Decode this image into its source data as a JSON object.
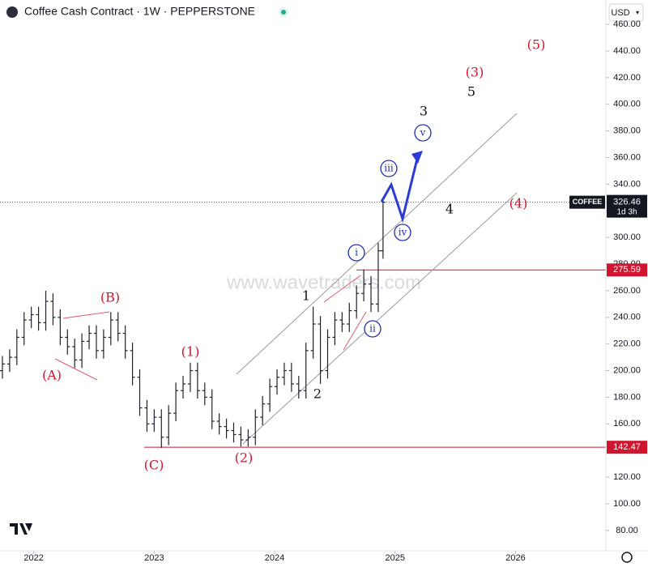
{
  "header": {
    "title": "Coffee Cash Contract · 1W · PEPPERSTONE",
    "currency": "USD",
    "watermark": "www.wavetraders.com"
  },
  "chart_data": {
    "type": "ohlc",
    "color": "#1e222d",
    "x": [
      2021.74,
      2021.8,
      2021.86,
      2021.92,
      2021.98,
      2022.04,
      2022.1,
      2022.16,
      2022.22,
      2022.28,
      2022.34,
      2022.4,
      2022.46,
      2022.52,
      2022.58,
      2022.64,
      2022.7,
      2022.76,
      2022.82,
      2022.88,
      2022.94,
      2023.0,
      2023.06,
      2023.12,
      2023.18,
      2023.24,
      2023.3,
      2023.36,
      2023.42,
      2023.48,
      2023.54,
      2023.6,
      2023.66,
      2023.72,
      2023.78,
      2023.84,
      2023.9,
      2023.96,
      2024.02,
      2024.08,
      2024.14,
      2024.2,
      2024.26,
      2024.32,
      2024.38,
      2024.44,
      2024.5,
      2024.56,
      2024.62,
      2024.68,
      2024.74,
      2024.8,
      2024.86,
      2024.9
    ],
    "open": [
      200,
      205,
      210,
      225,
      238,
      242,
      236,
      252,
      240,
      225,
      218,
      208,
      222,
      228,
      215,
      225,
      238,
      228,
      215,
      195,
      172,
      160,
      165,
      150,
      168,
      185,
      190,
      200,
      185,
      180,
      162,
      158,
      155,
      152,
      148,
      150,
      165,
      175,
      188,
      195,
      200,
      190,
      185,
      215,
      235,
      200,
      225,
      238,
      235,
      245,
      258,
      265,
      250,
      290
    ],
    "high": [
      211,
      216,
      231,
      244,
      248,
      248,
      260,
      258,
      246,
      231,
      224,
      228,
      234,
      234,
      231,
      244,
      244,
      234,
      221,
      201,
      178,
      171,
      171,
      174,
      191,
      196,
      206,
      206,
      191,
      186,
      168,
      164,
      161,
      158,
      156,
      171,
      181,
      194,
      201,
      206,
      206,
      196,
      221,
      248,
      241,
      231,
      244,
      244,
      251,
      264,
      276,
      271,
      296,
      330
    ],
    "low": [
      194,
      199,
      204,
      219,
      232,
      230,
      230,
      234,
      219,
      212,
      202,
      202,
      216,
      209,
      209,
      219,
      222,
      209,
      189,
      166,
      154,
      154,
      142,
      144,
      162,
      179,
      184,
      179,
      174,
      156,
      152,
      149,
      146,
      143,
      143,
      144,
      159,
      169,
      182,
      189,
      184,
      179,
      179,
      209,
      190,
      194,
      219,
      229,
      229,
      239,
      252,
      244,
      244,
      284
    ],
    "close": [
      205,
      210,
      225,
      238,
      242,
      236,
      252,
      240,
      225,
      218,
      208,
      222,
      228,
      215,
      225,
      238,
      228,
      215,
      195,
      172,
      160,
      165,
      150,
      168,
      185,
      190,
      200,
      185,
      180,
      162,
      158,
      155,
      152,
      148,
      150,
      165,
      175,
      188,
      195,
      200,
      190,
      185,
      215,
      235,
      200,
      225,
      238,
      235,
      245,
      258,
      265,
      250,
      290,
      326.46
    ],
    "xlim": [
      2021.72,
      2026.75
    ],
    "xticks": [
      2022,
      2023,
      2024,
      2025,
      2026
    ],
    "ylim": [
      64.7,
      478.3
    ],
    "yticks": [
      {
        "value": 80,
        "label": "80.00"
      },
      {
        "value": 100,
        "label": "100.00"
      },
      {
        "value": 120,
        "label": "120.00"
      },
      {
        "value": 140,
        "label": "140.00"
      },
      {
        "value": 160,
        "label": "160.00"
      },
      {
        "value": 180,
        "label": "180.00"
      },
      {
        "value": 200,
        "label": "200.00"
      },
      {
        "value": 220,
        "label": "220.00"
      },
      {
        "value": 240,
        "label": "240.00"
      },
      {
        "value": 260,
        "label": "260.00"
      },
      {
        "value": 280,
        "label": "280.00"
      },
      {
        "value": 300,
        "label": "300.00"
      },
      {
        "value": 320,
        "label": "320.00"
      },
      {
        "value": 340,
        "label": "340.00"
      },
      {
        "value": 360,
        "label": "360.00"
      },
      {
        "value": 380,
        "label": "380.00"
      },
      {
        "value": 400,
        "label": "400.00"
      },
      {
        "value": 420,
        "label": "420.00"
      },
      {
        "value": 440,
        "label": "440.00"
      },
      {
        "value": 460,
        "label": "460.00"
      }
    ],
    "hlines": [
      275.59,
      142.47
    ],
    "last_price": {
      "symbol": "COFFEE",
      "value": 326.46,
      "countdown": "1d 3h"
    },
    "annotations": [
      "(A)",
      "(B)",
      "(C)",
      "(1)",
      "(2)",
      "(3)",
      "(4)",
      "(5)",
      "1",
      "2",
      "3",
      "4",
      "5",
      "i",
      "ii",
      "iii",
      "iv",
      "v"
    ]
  }
}
